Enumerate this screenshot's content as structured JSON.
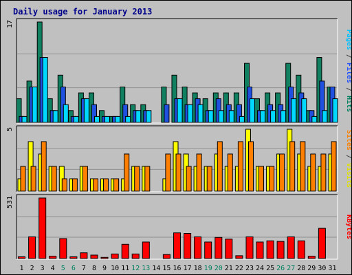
{
  "chart_data": {
    "type": "bar",
    "title": "Daily usage for January 2013",
    "x": [
      "1",
      "2",
      "3",
      "4",
      "5",
      "6",
      "7",
      "8",
      "9",
      "10",
      "11",
      "12",
      "13",
      "14",
      "15",
      "16",
      "17",
      "18",
      "19",
      "20",
      "21",
      "22",
      "23",
      "24",
      "25",
      "26",
      "27",
      "28",
      "29",
      "30",
      "31"
    ],
    "weekend_days": [
      "5",
      "6",
      "12",
      "13",
      "19",
      "20",
      "26",
      "27"
    ],
    "panels": [
      {
        "id": "top",
        "ylim": [
          0,
          17
        ],
        "ytick": "17",
        "label_parts": [
          {
            "text": "Pages",
            "color": "#00c0ff"
          },
          {
            "text": " / ",
            "color": "#404040"
          },
          {
            "text": "Files",
            "color": "#2050ff"
          },
          {
            "text": " / ",
            "color": "#404040"
          },
          {
            "text": "Hits",
            "color": "#008060"
          }
        ],
        "series": [
          {
            "name": "Hits",
            "color": "#108060",
            "values": [
              4,
              7,
              17,
              4,
              8,
              2,
              5,
              5,
              2,
              1,
              6,
              3,
              3,
              0,
              6,
              8,
              6,
              5,
              4,
              5,
              5,
              5,
              10,
              4,
              5,
              5,
              10,
              8,
              2,
              11,
              6
            ]
          },
          {
            "name": "Files",
            "color": "#2050e0",
            "values": [
              1,
              6,
              11,
              2,
              6,
              1,
              4,
              3,
              1,
              1,
              3,
              2,
              2,
              0,
              3,
              4,
              3,
              4,
              2,
              4,
              3,
              3,
              6,
              2,
              3,
              3,
              6,
              5,
              2,
              7,
              6
            ]
          },
          {
            "name": "Pages",
            "color": "#00d8ff",
            "values": [
              1,
              6,
              11,
              2,
              3,
              1,
              4,
              1,
              1,
              1,
              1,
              2,
              2,
              0,
              0,
              4,
              3,
              3,
              2,
              2,
              2,
              1,
              4,
              2,
              2,
              2,
              4,
              4,
              1,
              2,
              4
            ]
          }
        ]
      },
      {
        "id": "middle",
        "ylim": [
          0,
          5
        ],
        "ytick": "5",
        "label_parts": [
          {
            "text": "Sites",
            "color": "#ff8000"
          },
          {
            "text": " / ",
            "color": "#404040"
          },
          {
            "text": "Visits",
            "color": "#e0e000"
          }
        ],
        "series": [
          {
            "name": "Visits",
            "color": "#ffff00",
            "values": [
              1,
              4,
              3,
              2,
              2,
              1,
              2,
              1,
              1,
              1,
              1,
              2,
              2,
              0,
              1,
              4,
              3,
              2,
              2,
              3,
              2,
              2,
              5,
              2,
              2,
              3,
              5,
              3,
              2,
              2,
              3
            ]
          },
          {
            "name": "Sites",
            "color": "#ff8000",
            "values": [
              2,
              2,
              4,
              2,
              1,
              1,
              2,
              1,
              1,
              1,
              3,
              2,
              2,
              0,
              3,
              3,
              2,
              3,
              2,
              4,
              3,
              4,
              4,
              2,
              2,
              3,
              4,
              4,
              3,
              3,
              4
            ]
          }
        ]
      },
      {
        "id": "bottom",
        "ylim": [
          0,
          531
        ],
        "ytick": "531",
        "label_parts": [
          {
            "text": "KBytes",
            "color": "#ff0000"
          }
        ],
        "series": [
          {
            "name": "KBytes",
            "color": "#ff0000",
            "values": [
              15,
              190,
              531,
              20,
              175,
              15,
              50,
              30,
              10,
              40,
              125,
              40,
              145,
              0,
              35,
              225,
              220,
              190,
              145,
              185,
              170,
              25,
              190,
              145,
              155,
              150,
              190,
              155,
              20,
              265,
              0
            ]
          }
        ]
      }
    ]
  }
}
